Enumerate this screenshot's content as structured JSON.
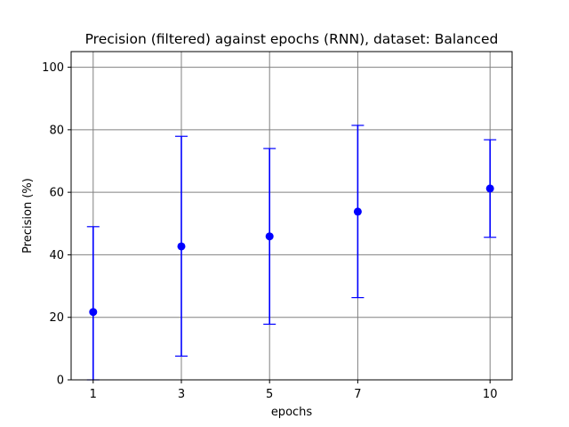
{
  "chart_data": {
    "type": "scatter",
    "title": "Precision (filtered) against epochs (RNN), dataset: Balanced",
    "xlabel": "epochs",
    "ylabel": "Precision (%)",
    "xlim": [
      0.5,
      10.5
    ],
    "ylim": [
      0,
      105
    ],
    "xticks": [
      1,
      3,
      5,
      7,
      10
    ],
    "yticks": [
      0,
      20,
      40,
      60,
      80,
      100
    ],
    "grid": true,
    "colors": {
      "series": "#0000ff",
      "grid": "#808080",
      "axes": "#000000"
    },
    "series": [
      {
        "x": [
          1,
          3,
          5,
          7,
          10
        ],
        "y": [
          21.7,
          42.7,
          45.9,
          53.8,
          61.2
        ],
        "err_low": [
          0,
          7.6,
          17.8,
          26.3,
          45.6
        ],
        "err_high": [
          49.0,
          77.9,
          74.0,
          81.4,
          76.8
        ]
      }
    ]
  }
}
